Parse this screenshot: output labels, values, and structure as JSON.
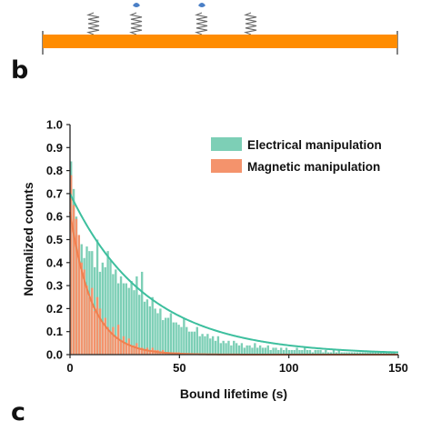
{
  "panel_labels": {
    "upper": "b",
    "lower": "c"
  },
  "colors": {
    "electrical": "#7dcfb6",
    "electrical_fit": "#3dbf9e",
    "magnetic": "#f4936c",
    "magnetic_fit": "#f0804f",
    "substrate": "#ff8c00",
    "spring": "#6a6a6a",
    "bead": "#4a7fc6"
  },
  "schematic": {
    "type": "surface-with-tethers",
    "tether_count": 4,
    "tethers_with_beads": 2
  },
  "chart_data": {
    "type": "bar",
    "xlabel": "Bound lifetime (s)",
    "ylabel": "Normalized counts",
    "xlim": [
      0,
      150
    ],
    "ylim": [
      0,
      1.0
    ],
    "xticks": [
      "0",
      "50",
      "100",
      "150"
    ],
    "yticks": [
      "0.0",
      "0.1",
      "0.2",
      "0.3",
      "0.4",
      "0.5",
      "0.6",
      "0.7",
      "0.8",
      "0.9",
      "1.0"
    ],
    "grid": false,
    "legend_position": "top-right",
    "bin_width": 1.2,
    "series": [
      {
        "name": "Electrical manipulation",
        "color": "#7dcfb6",
        "bins": [
          [
            0.6,
            0.84
          ],
          [
            1.8,
            0.72
          ],
          [
            3.0,
            0.6
          ],
          [
            4.2,
            0.47
          ],
          [
            5.4,
            0.48
          ],
          [
            6.6,
            0.42
          ],
          [
            7.8,
            0.47
          ],
          [
            9.0,
            0.45
          ],
          [
            10.2,
            0.45
          ],
          [
            11.4,
            0.38
          ],
          [
            12.6,
            0.5
          ],
          [
            13.8,
            0.36
          ],
          [
            15.0,
            0.4
          ],
          [
            16.2,
            0.38
          ],
          [
            17.4,
            0.45
          ],
          [
            18.6,
            0.41
          ],
          [
            19.8,
            0.35
          ],
          [
            21.0,
            0.37
          ],
          [
            22.2,
            0.31
          ],
          [
            23.4,
            0.34
          ],
          [
            24.6,
            0.31
          ],
          [
            25.8,
            0.31
          ],
          [
            27.0,
            0.29
          ],
          [
            28.2,
            0.32
          ],
          [
            29.4,
            0.28
          ],
          [
            30.6,
            0.34
          ],
          [
            31.8,
            0.26
          ],
          [
            33.0,
            0.36
          ],
          [
            34.2,
            0.23
          ],
          [
            35.4,
            0.24
          ],
          [
            36.6,
            0.21
          ],
          [
            37.8,
            0.25
          ],
          [
            39.0,
            0.2
          ],
          [
            40.2,
            0.18
          ],
          [
            41.4,
            0.2
          ],
          [
            42.6,
            0.15
          ],
          [
            43.8,
            0.16
          ],
          [
            45.0,
            0.16
          ],
          [
            46.2,
            0.18
          ],
          [
            47.4,
            0.14
          ],
          [
            48.6,
            0.14
          ],
          [
            49.8,
            0.13
          ],
          [
            51.0,
            0.12
          ],
          [
            52.2,
            0.16
          ],
          [
            53.4,
            0.12
          ],
          [
            54.6,
            0.1
          ],
          [
            55.8,
            0.1
          ],
          [
            57.0,
            0.1
          ],
          [
            58.2,
            0.12
          ],
          [
            59.4,
            0.08
          ],
          [
            60.6,
            0.09
          ],
          [
            61.8,
            0.08
          ],
          [
            63.0,
            0.09
          ],
          [
            64.2,
            0.07
          ],
          [
            65.4,
            0.08
          ],
          [
            66.6,
            0.06
          ],
          [
            67.8,
            0.08
          ],
          [
            69.0,
            0.05
          ],
          [
            70.2,
            0.06
          ],
          [
            71.4,
            0.05
          ],
          [
            72.6,
            0.06
          ],
          [
            73.8,
            0.04
          ],
          [
            75.0,
            0.06
          ],
          [
            76.2,
            0.05
          ],
          [
            77.4,
            0.04
          ],
          [
            78.6,
            0.05
          ],
          [
            79.8,
            0.03
          ],
          [
            81.0,
            0.04
          ],
          [
            82.2,
            0.04
          ],
          [
            83.4,
            0.03
          ],
          [
            84.6,
            0.05
          ],
          [
            85.8,
            0.03
          ],
          [
            87.0,
            0.04
          ],
          [
            88.2,
            0.03
          ],
          [
            89.4,
            0.03
          ],
          [
            90.6,
            0.04
          ],
          [
            91.8,
            0.02
          ],
          [
            93.0,
            0.03
          ],
          [
            94.2,
            0.03
          ],
          [
            95.4,
            0.02
          ],
          [
            96.6,
            0.03
          ],
          [
            97.8,
            0.02
          ],
          [
            99.0,
            0.03
          ],
          [
            100.2,
            0.02
          ],
          [
            101.4,
            0.02
          ],
          [
            102.6,
            0.02
          ],
          [
            103.8,
            0.03
          ],
          [
            105.0,
            0.02
          ],
          [
            106.2,
            0.02
          ],
          [
            107.4,
            0.03
          ],
          [
            108.6,
            0.02
          ],
          [
            109.8,
            0.02
          ],
          [
            111.0,
            0.01
          ],
          [
            112.2,
            0.02
          ],
          [
            113.4,
            0.02
          ],
          [
            114.6,
            0.02
          ],
          [
            115.8,
            0.01
          ],
          [
            117.0,
            0.02
          ],
          [
            118.2,
            0.01
          ],
          [
            119.4,
            0.01
          ],
          [
            120.6,
            0.02
          ],
          [
            121.8,
            0.01
          ],
          [
            123.0,
            0.02
          ],
          [
            124.2,
            0.01
          ],
          [
            125.4,
            0.01
          ],
          [
            126.6,
            0.01
          ],
          [
            127.8,
            0.01
          ],
          [
            129.0,
            0.01
          ],
          [
            130.2,
            0.01
          ],
          [
            131.4,
            0.01
          ],
          [
            132.6,
            0.01
          ],
          [
            133.8,
            0.01
          ],
          [
            135.0,
            0.01
          ],
          [
            136.2,
            0.01
          ],
          [
            137.4,
            0.01
          ],
          [
            138.6,
            0.01
          ],
          [
            139.8,
            0.01
          ],
          [
            141.0,
            0.01
          ],
          [
            142.2,
            0.01
          ],
          [
            143.4,
            0.01
          ],
          [
            144.6,
            0.01
          ],
          [
            145.8,
            0.01
          ],
          [
            147.0,
            0.01
          ],
          [
            148.2,
            0.01
          ]
        ],
        "fit": {
          "model": "exponential",
          "amplitude": 0.7,
          "decay": 35
        }
      },
      {
        "name": "Magnetic manipulation",
        "color": "#f4936c",
        "bins": [
          [
            0.6,
            0.78
          ],
          [
            1.8,
            0.65
          ],
          [
            3.0,
            0.59
          ],
          [
            4.2,
            0.52
          ],
          [
            5.4,
            0.4
          ],
          [
            6.6,
            0.37
          ],
          [
            7.8,
            0.3
          ],
          [
            9.0,
            0.25
          ],
          [
            10.2,
            0.29
          ],
          [
            11.4,
            0.19
          ],
          [
            12.6,
            0.25
          ],
          [
            13.8,
            0.2
          ],
          [
            15.0,
            0.14
          ],
          [
            16.2,
            0.16
          ],
          [
            17.4,
            0.12
          ],
          [
            18.6,
            0.1
          ],
          [
            19.8,
            0.12
          ],
          [
            21.0,
            0.08
          ],
          [
            22.2,
            0.13
          ],
          [
            23.4,
            0.06
          ],
          [
            24.6,
            0.08
          ],
          [
            25.8,
            0.05
          ],
          [
            27.0,
            0.07
          ],
          [
            28.2,
            0.04
          ],
          [
            29.4,
            0.04
          ],
          [
            30.6,
            0.05
          ],
          [
            31.8,
            0.03
          ],
          [
            33.0,
            0.03
          ],
          [
            34.2,
            0.02
          ],
          [
            35.4,
            0.03
          ],
          [
            36.6,
            0.02
          ],
          [
            37.8,
            0.03
          ],
          [
            39.0,
            0.02
          ],
          [
            40.2,
            0.02
          ],
          [
            41.4,
            0.01
          ],
          [
            42.6,
            0.02
          ],
          [
            43.8,
            0.01
          ],
          [
            45.0,
            0.01
          ],
          [
            46.2,
            0.01
          ],
          [
            47.4,
            0.01
          ],
          [
            48.6,
            0.01
          ],
          [
            49.8,
            0.01
          ]
        ],
        "fit": {
          "model": "exponential",
          "amplitude": 0.62,
          "decay": 10
        }
      }
    ]
  }
}
